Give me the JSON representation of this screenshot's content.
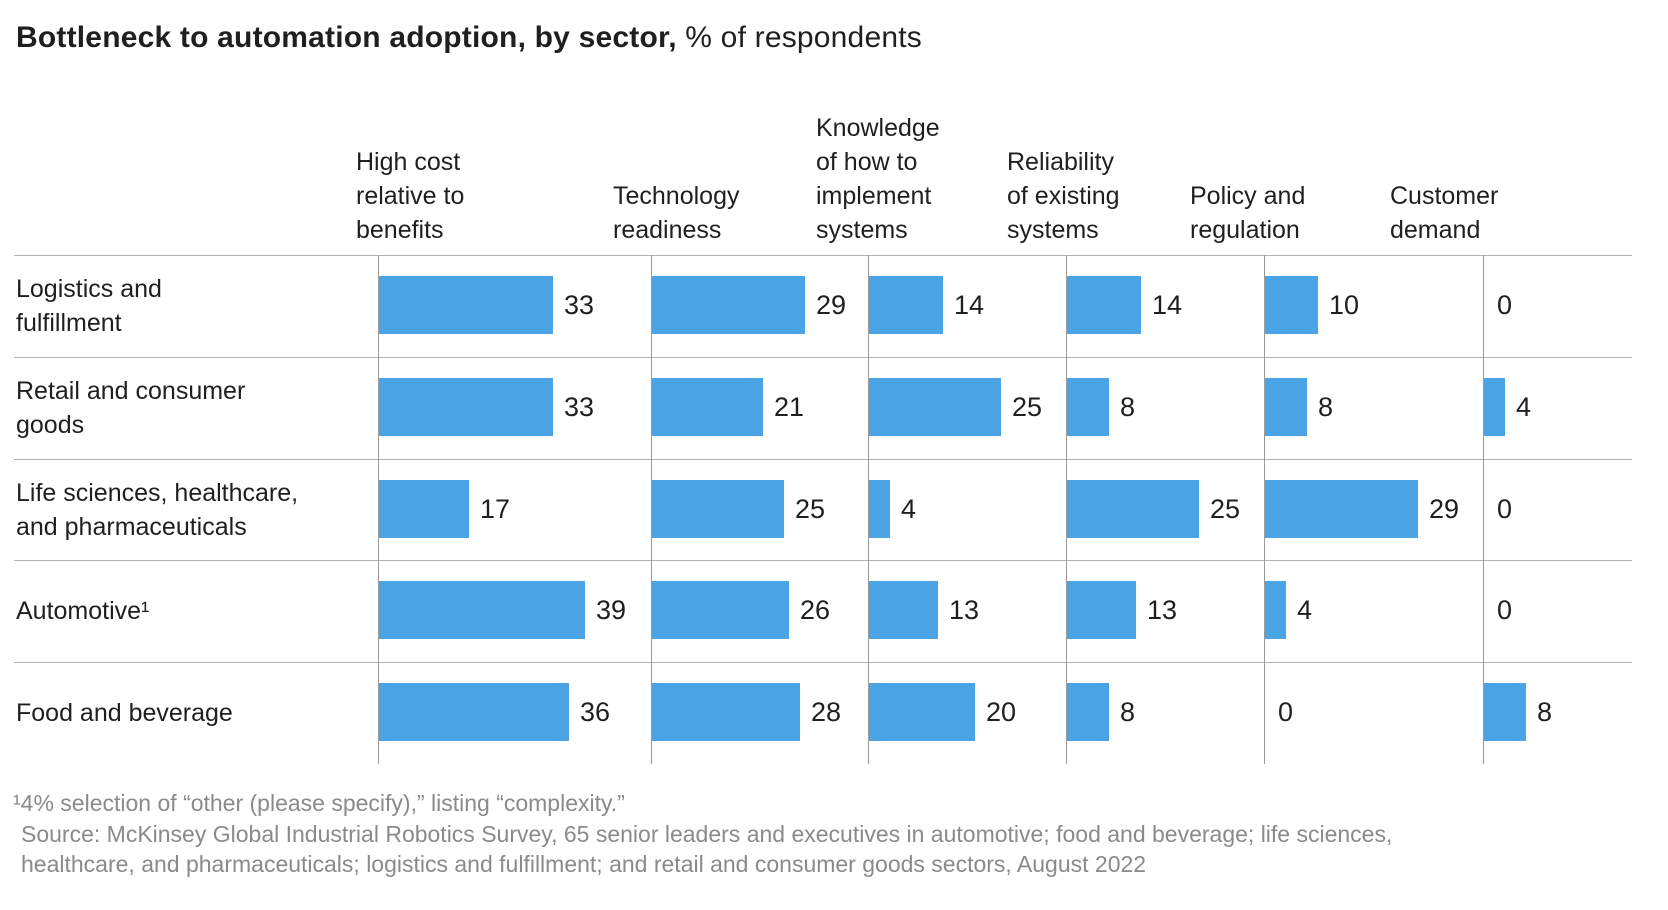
{
  "title": {
    "bold": "Bottleneck to automation adoption, by sector,",
    "regular": " % of respondents"
  },
  "chart_data": {
    "type": "bar",
    "orientation": "horizontal",
    "title": "Bottleneck to automation adoption, by sector",
    "unit": "% of respondents",
    "value_range": [
      0,
      39
    ],
    "bar_color": "#4BA4E6",
    "grid": "row-separators-and-column-axes",
    "columns": [
      {
        "label": "High cost relative to benefits",
        "lines": [
          "High cost",
          "relative to",
          "benefits"
        ]
      },
      {
        "label": "Technology readiness",
        "lines": [
          "Technology",
          "readiness"
        ]
      },
      {
        "label": "Knowledge of how to implement systems",
        "lines": [
          "Knowledge",
          "of how to",
          "implement",
          "systems"
        ]
      },
      {
        "label": "Reliability of existing systems",
        "lines": [
          "Reliability",
          "of existing",
          "systems"
        ]
      },
      {
        "label": "Policy and regulation",
        "lines": [
          "Policy and",
          "regulation"
        ]
      },
      {
        "label": "Customer demand",
        "lines": [
          "Customer",
          "demand"
        ]
      }
    ],
    "rows": [
      {
        "label": "Logistics and fulfillment",
        "lines": [
          "Logistics and",
          "fulfillment"
        ],
        "values": [
          33,
          29,
          14,
          14,
          10,
          0
        ]
      },
      {
        "label": "Retail and consumer goods",
        "lines": [
          "Retail and consumer",
          "goods"
        ],
        "values": [
          33,
          21,
          25,
          8,
          8,
          4
        ]
      },
      {
        "label": "Life sciences, healthcare, and pharmaceuticals",
        "lines": [
          "Life sciences, healthcare,",
          "and pharmaceuticals"
        ],
        "values": [
          17,
          25,
          4,
          25,
          29,
          0
        ]
      },
      {
        "label": "Automotive¹",
        "lines": [
          "Automotive¹"
        ],
        "values": [
          39,
          26,
          13,
          13,
          4,
          0
        ]
      },
      {
        "label": "Food and beverage",
        "lines": [
          "Food and beverage"
        ],
        "values": [
          36,
          28,
          20,
          8,
          0,
          8
        ]
      }
    ]
  },
  "footnote": {
    "text": "¹4% selection of “other (please specify),” listing “complexity.”"
  },
  "source": "Source: McKinsey Global Industrial Robotics Survey, 65 senior leaders and executives in automotive; food and beverage; life sciences, healthcare, and pharmaceuticals; logistics and fulfillment; and retail and consumer goods sectors, August 2022"
}
